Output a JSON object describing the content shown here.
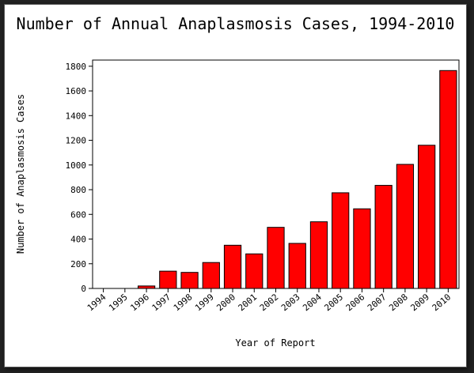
{
  "chart_data": {
    "type": "bar",
    "title": "Number of Annual Anaplasmosis Cases, 1994-2010",
    "xlabel": "Year of Report",
    "ylabel": "Number of Anaplasmosis Cases",
    "ylim": [
      0,
      1850
    ],
    "yticks": [
      0,
      200,
      400,
      600,
      800,
      1000,
      1200,
      1400,
      1600,
      1800
    ],
    "categories": [
      "1994",
      "1995",
      "1996",
      "1997",
      "1998",
      "1999",
      "2000",
      "2001",
      "2002",
      "2003",
      "2004",
      "2005",
      "2006",
      "2007",
      "2008",
      "2009",
      "2010"
    ],
    "values": [
      0,
      0,
      20,
      140,
      130,
      210,
      350,
      280,
      495,
      365,
      540,
      775,
      645,
      835,
      1005,
      1160,
      1765
    ],
    "bar_color": "#ff0000",
    "grid": false,
    "legend": "none"
  }
}
